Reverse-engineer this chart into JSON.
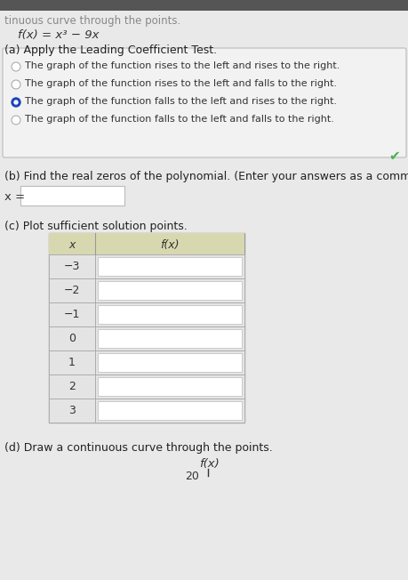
{
  "title_top": "tinuous curve through the points.",
  "function_label": "f(x) = x³ − 9x",
  "part_a_label": "(a) Apply the Leading Coefficient Test.",
  "options": [
    "The graph of the function rises to the left and rises to the right.",
    "The graph of the function rises to the left and falls to the right.",
    "The graph of the function falls to the left and rises to the right.",
    "The graph of the function falls to the left and falls to the right."
  ],
  "selected_option": 2,
  "checkmark_color": "#4CAF50",
  "part_b_label": "(b) Find the real zeros of the polynomial. (Enter your answers as a comm",
  "x_equals": "x =",
  "part_c_label": "(c) Plot sufficient solution points.",
  "table_x_values": [
    "−3",
    "−2",
    "−1",
    "0",
    "1",
    "2",
    "3"
  ],
  "table_header_x": "x",
  "table_header_fx": "f(x)",
  "part_d_label": "(d) Draw a continuous curve through the points.",
  "part_d_fx": "f(x)",
  "part_d_20": "20",
  "bg_color": "#dcdcdc",
  "content_bg": "#efefef",
  "box_bg": "#f5f5f5",
  "table_header_bg": "#d8d8b0",
  "table_cell_bg": "#ffffff",
  "radio_fill_selected": "#1a44bb",
  "radio_fill_unselected": "#ffffff",
  "text_color": "#111111",
  "gray_text": "#888888",
  "option_text_color": "#333333"
}
